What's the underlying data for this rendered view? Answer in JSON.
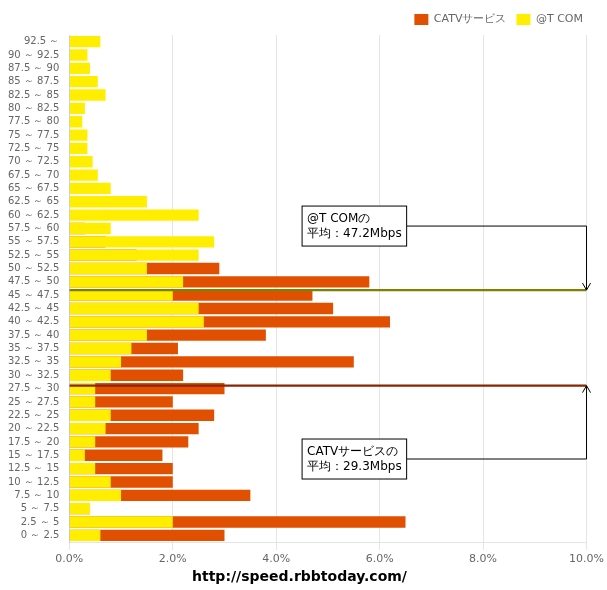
{
  "chart_data": {
    "type": "bar",
    "orientation": "horizontal",
    "subtitle": "http://speed.rbbtoday.com/",
    "categories": [
      "92.5 ～",
      "90 ～ 92.5",
      "87.5 ～ 90",
      "85 ～ 87.5",
      "82.5 ～ 85",
      "80 ～ 82.5",
      "77.5 ～ 80",
      "75 ～ 77.5",
      "72.5 ～ 75",
      "70 ～ 72.5",
      "67.5 ～ 70",
      "65 ～ 67.5",
      "62.5 ～ 65",
      "60 ～ 62.5",
      "57.5 ～ 60",
      "55 ～ 57.5",
      "52.5 ～ 55",
      "50 ～ 52.5",
      "47.5 ～ 50",
      "45 ～ 47.5",
      "42.5 ～ 45",
      "40 ～ 42.5",
      "37.5 ～ 40",
      "35 ～ 37.5",
      "32.5 ～ 35",
      "30 ～ 32.5",
      "27.5 ～ 30",
      "25 ～ 27.5",
      "22.5 ～ 25",
      "20 ～ 22.5",
      "17.5 ～ 20",
      "15 ～ 17.5",
      "12.5 ～ 15",
      "10 ～ 12.5",
      "7.5 ～ 10",
      "5 ～ 7.5",
      "2.5 ～ 5",
      "0 ～ 2.5"
    ],
    "series": [
      {
        "name": "CATVサービス",
        "color": "#e05000",
        "values": [
          0.0,
          0.0,
          0.0,
          0.0,
          0.0,
          0.0,
          0.0,
          0.0,
          0.0,
          0.0,
          0.0,
          0.0,
          0.0,
          0.0,
          0.3,
          0.7,
          1.3,
          2.9,
          5.8,
          4.7,
          5.1,
          6.2,
          3.8,
          2.1,
          5.5,
          2.2,
          3.0,
          2.0,
          2.8,
          2.5,
          2.3,
          1.8,
          2.0,
          2.0,
          3.5,
          0.4,
          6.5,
          3.0
        ]
      },
      {
        "name": "@T COM",
        "color": "#ffee00",
        "values": [
          0.6,
          0.35,
          0.4,
          0.55,
          0.7,
          0.3,
          0.25,
          0.35,
          0.35,
          0.45,
          0.55,
          0.8,
          1.5,
          2.5,
          0.8,
          2.8,
          2.5,
          1.5,
          2.2,
          2.0,
          2.5,
          2.6,
          1.5,
          1.2,
          1.0,
          0.8,
          0.5,
          0.5,
          0.8,
          0.7,
          0.5,
          0.3,
          0.5,
          0.8,
          1.0,
          0.4,
          2.0,
          0.6
        ]
      }
    ],
    "annotations": [
      {
        "text": "@T COMの\n平均：47.2Mbps",
        "value": 47.2,
        "color": "#808000"
      },
      {
        "text": "CATVサービスの\n平均：29.3Mbps",
        "value": 29.3,
        "color": "#8b2500"
      }
    ],
    "xlim": [
      0,
      10
    ],
    "xticks": [
      {
        "value": 0,
        "label": "0.0%"
      },
      {
        "value": 2,
        "label": "2.0%"
      },
      {
        "value": 4,
        "label": "4.0%"
      },
      {
        "value": 6,
        "label": "6.0%"
      },
      {
        "value": 8,
        "label": "8.0%"
      },
      {
        "value": 10,
        "label": "10.0%"
      }
    ],
    "grid": true,
    "legend": "upper right"
  }
}
